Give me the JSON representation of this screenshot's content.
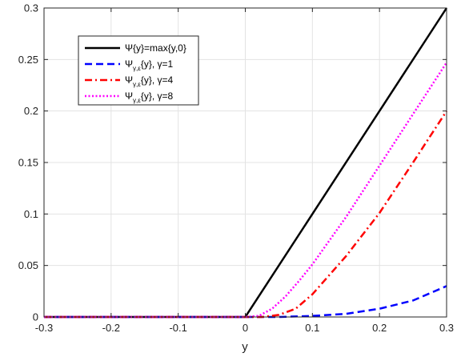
{
  "chart_data": {
    "type": "line",
    "xlabel": "y",
    "ylabel": "",
    "xlim": [
      -0.3,
      0.3
    ],
    "ylim": [
      0,
      0.3
    ],
    "xticks": [
      -0.3,
      -0.2,
      -0.1,
      0,
      0.1,
      0.2,
      0.3
    ],
    "xtick_labels": [
      "-0.3",
      "-0.2",
      "-0.1",
      "0",
      "0.1",
      "0.2",
      "0.3"
    ],
    "yticks": [
      0,
      0.05,
      0.1,
      0.15,
      0.2,
      0.25,
      0.3
    ],
    "ytick_labels": [
      "0",
      "0.05",
      "0.1",
      "0.15",
      "0.2",
      "0.25",
      "0.3"
    ],
    "grid": true,
    "legend_position": "top-left",
    "series": [
      {
        "name": "Ψ{y}=max{y,0}",
        "legend": {
          "main": "Ψ{y}=max{y,0}",
          "sub": "",
          "rest": ""
        },
        "color": "#000000",
        "dash": "solid",
        "x": [
          -0.3,
          0,
          0.3
        ],
        "y": [
          0,
          0,
          0.3
        ]
      },
      {
        "name": "Ψγ,ε{y}, γ=1",
        "legend": {
          "main": "Ψ",
          "sub": "γ,ε",
          "rest": "{y}, γ=1"
        },
        "color": "#0000ff",
        "dash": "dashed",
        "x": [
          -0.3,
          0,
          0.05,
          0.1,
          0.15,
          0.2,
          0.25,
          0.3
        ],
        "y": [
          0,
          0,
          0,
          0.001,
          0.003,
          0.008,
          0.016,
          0.03
        ]
      },
      {
        "name": "Ψγ,ε{y}, γ=4",
        "legend": {
          "main": "Ψ",
          "sub": "γ,ε",
          "rest": "{y}, γ=4"
        },
        "color": "#ff0000",
        "dash": "dashdot",
        "x": [
          -0.3,
          0,
          0.025,
          0.05,
          0.075,
          0.1,
          0.15,
          0.2,
          0.25,
          0.3
        ],
        "y": [
          0,
          0,
          0,
          0.002,
          0.008,
          0.022,
          0.059,
          0.101,
          0.15,
          0.2
        ]
      },
      {
        "name": "Ψγ,ε{y}, γ=8",
        "legend": {
          "main": "Ψ",
          "sub": "γ,ε",
          "rest": "{y}, γ=8"
        },
        "color": "#ff00ff",
        "dash": "dotted",
        "x": [
          -0.3,
          0,
          0.02,
          0.04,
          0.06,
          0.08,
          0.1,
          0.15,
          0.2,
          0.25,
          0.3
        ],
        "y": [
          0,
          0,
          0.001,
          0.008,
          0.02,
          0.035,
          0.051,
          0.097,
          0.147,
          0.197,
          0.247
        ]
      }
    ]
  }
}
